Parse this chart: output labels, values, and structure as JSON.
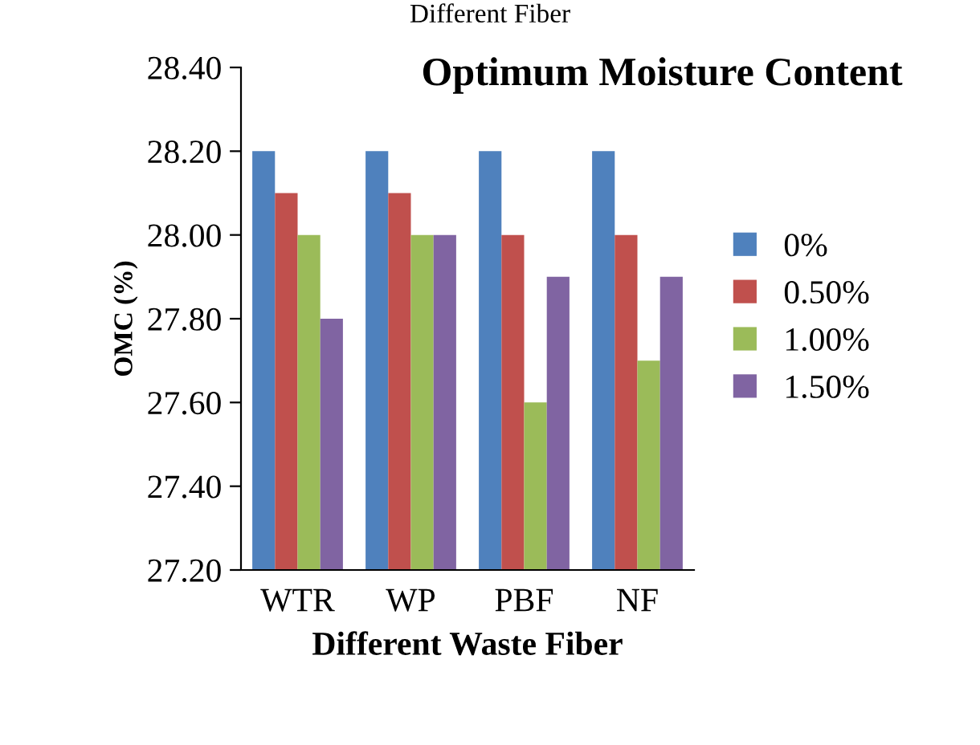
{
  "chart_data": {
    "type": "bar",
    "title": "Optimum Moisture Content",
    "xlabel": "Different Waste Fiber",
    "ylabel": "OMC (%)",
    "annotations": [
      "Different Fiber"
    ],
    "categories": [
      "WTR",
      "WP",
      "PBF",
      "NF"
    ],
    "series": [
      {
        "name": "0%",
        "color": "#4f81bd",
        "values": [
          28.2,
          28.2,
          28.2,
          28.2
        ]
      },
      {
        "name": "0.50%",
        "color": "#c0504d",
        "values": [
          28.1,
          28.1,
          28.0,
          28.0
        ]
      },
      {
        "name": "1.00%",
        "color": "#9bbb59",
        "values": [
          28.0,
          28.0,
          27.6,
          27.7
        ]
      },
      {
        "name": "1.50%",
        "color": "#8064a2",
        "values": [
          27.8,
          28.0,
          27.9,
          27.9
        ]
      }
    ],
    "ylim": [
      27.2,
      28.4
    ],
    "yticks": [
      {
        "value": 27.2,
        "label": "27.20"
      },
      {
        "value": 27.4,
        "label": "27.40"
      },
      {
        "value": 27.6,
        "label": "27.60"
      },
      {
        "value": 27.8,
        "label": "27.80"
      },
      {
        "value": 28.0,
        "label": "28.00"
      },
      {
        "value": 28.2,
        "label": "28.20"
      },
      {
        "value": 28.4,
        "label": "28.40"
      }
    ],
    "grid": false,
    "legend": "right"
  }
}
